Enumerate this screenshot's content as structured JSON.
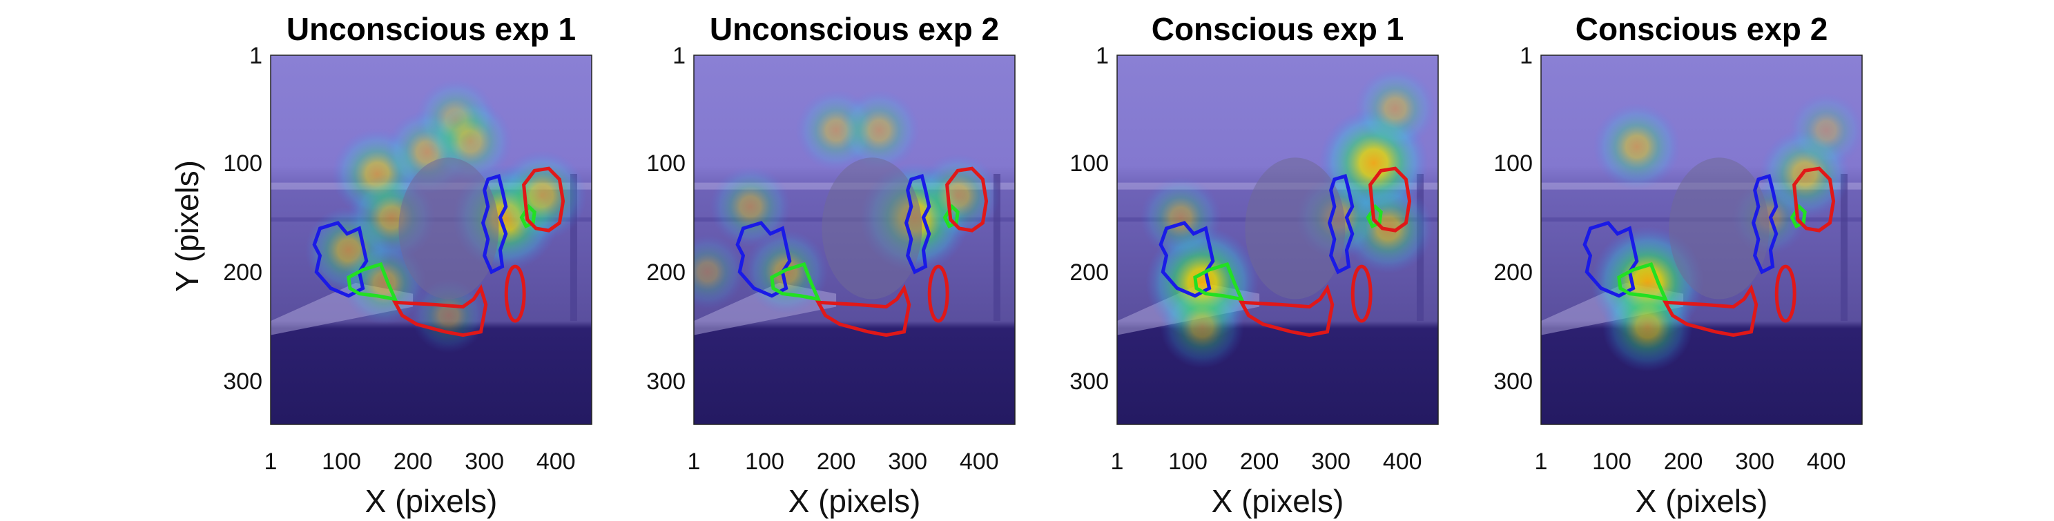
{
  "figure": {
    "ylabel": "Y (pixels)",
    "xlabel": "X (pixels)",
    "colors": {
      "background_tint": "#7b6fd2",
      "background_dark": "#2a1d66",
      "blue_roi": "#1a1ae6",
      "red_roi": "#e01818",
      "green_roi": "#22e022"
    }
  },
  "chart_data": [
    {
      "type": "heatmap",
      "title": "Unconscious exp 1",
      "xlabel": "X (pixels)",
      "ylabel": "Y (pixels)",
      "x_ticks": [
        "1",
        "100",
        "200",
        "300",
        "400"
      ],
      "y_ticks": [
        "1",
        "100",
        "200",
        "300"
      ],
      "xlim": [
        1,
        450
      ],
      "ylim": [
        1,
        340
      ],
      "hotspots": [
        {
          "x": 150,
          "y": 110,
          "intensity": 0.6
        },
        {
          "x": 220,
          "y": 90,
          "intensity": 0.5
        },
        {
          "x": 260,
          "y": 60,
          "intensity": 0.45
        },
        {
          "x": 280,
          "y": 80,
          "intensity": 0.5
        },
        {
          "x": 330,
          "y": 150,
          "intensity": 0.85
        },
        {
          "x": 380,
          "y": 130,
          "intensity": 0.6
        },
        {
          "x": 110,
          "y": 180,
          "intensity": 0.55
        },
        {
          "x": 170,
          "y": 150,
          "intensity": 0.55
        },
        {
          "x": 160,
          "y": 210,
          "intensity": 0.5
        },
        {
          "x": 250,
          "y": 240,
          "intensity": 0.35
        }
      ]
    },
    {
      "type": "heatmap",
      "title": "Unconscious exp 2",
      "xlabel": "X (pixels)",
      "ylabel": "",
      "x_ticks": [
        "1",
        "100",
        "200",
        "300",
        "400"
      ],
      "y_ticks": [
        "1",
        "100",
        "200",
        "300"
      ],
      "xlim": [
        1,
        450
      ],
      "ylim": [
        1,
        340
      ],
      "hotspots": [
        {
          "x": 200,
          "y": 70,
          "intensity": 0.45
        },
        {
          "x": 260,
          "y": 70,
          "intensity": 0.45
        },
        {
          "x": 80,
          "y": 140,
          "intensity": 0.45
        },
        {
          "x": 310,
          "y": 150,
          "intensity": 0.9
        },
        {
          "x": 370,
          "y": 130,
          "intensity": 0.5
        },
        {
          "x": 130,
          "y": 200,
          "intensity": 0.5
        },
        {
          "x": 20,
          "y": 200,
          "intensity": 0.35
        }
      ]
    },
    {
      "type": "heatmap",
      "title": "Conscious exp 1",
      "xlabel": "X (pixels)",
      "ylabel": "",
      "x_ticks": [
        "1",
        "100",
        "200",
        "300",
        "400"
      ],
      "y_ticks": [
        "1",
        "100",
        "200",
        "300"
      ],
      "xlim": [
        1,
        450
      ],
      "ylim": [
        1,
        340
      ],
      "hotspots": [
        {
          "x": 360,
          "y": 100,
          "intensity": 0.9
        },
        {
          "x": 390,
          "y": 50,
          "intensity": 0.45
        },
        {
          "x": 380,
          "y": 160,
          "intensity": 0.6
        },
        {
          "x": 310,
          "y": 150,
          "intensity": 0.5
        },
        {
          "x": 120,
          "y": 210,
          "intensity": 0.95
        },
        {
          "x": 90,
          "y": 150,
          "intensity": 0.45
        },
        {
          "x": 120,
          "y": 250,
          "intensity": 0.5
        }
      ]
    },
    {
      "type": "heatmap",
      "title": "Conscious exp 2",
      "xlabel": "X (pixels)",
      "ylabel": "",
      "x_ticks": [
        "1",
        "100",
        "200",
        "300",
        "400"
      ],
      "y_ticks": [
        "1",
        "100",
        "200",
        "300"
      ],
      "xlim": [
        1,
        450
      ],
      "ylim": [
        1,
        340
      ],
      "hotspots": [
        {
          "x": 135,
          "y": 85,
          "intensity": 0.55
        },
        {
          "x": 370,
          "y": 110,
          "intensity": 0.6
        },
        {
          "x": 400,
          "y": 70,
          "intensity": 0.35
        },
        {
          "x": 150,
          "y": 210,
          "intensity": 0.95
        },
        {
          "x": 150,
          "y": 250,
          "intensity": 0.6
        },
        {
          "x": 320,
          "y": 150,
          "intensity": 0.35
        }
      ]
    }
  ]
}
